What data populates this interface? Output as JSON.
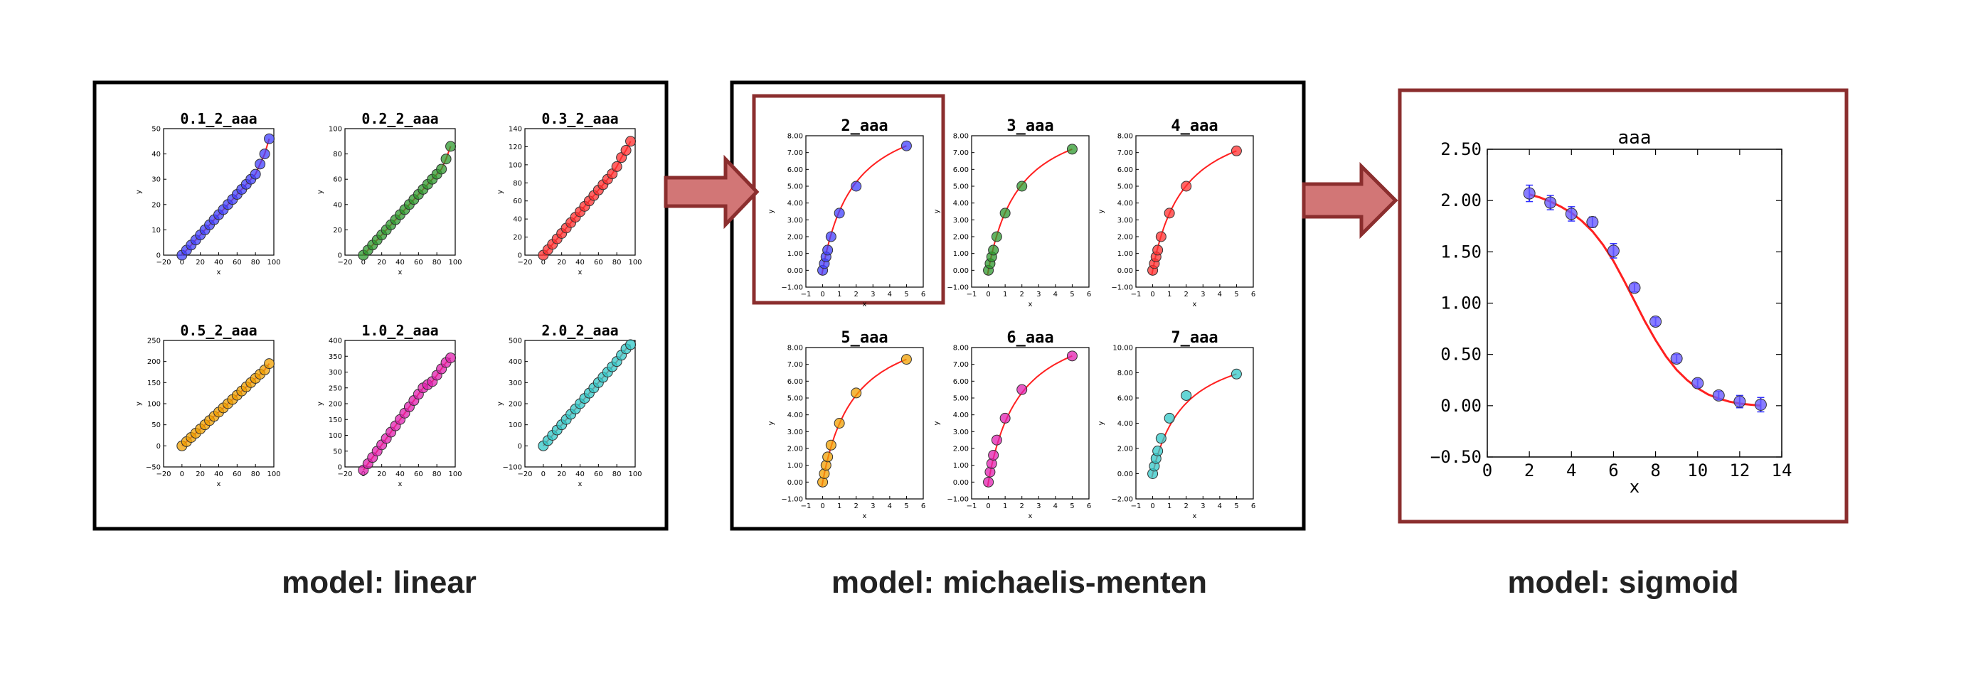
{
  "colors": {
    "panel_border": "#000000",
    "highlight_border": "#8b2e2e",
    "arrow_fill": "#d27676",
    "arrow_stroke": "#8b2e2e",
    "fit_line": "#ff2020",
    "palette": [
      "#4040ff",
      "#2e9a2e",
      "#ff3030",
      "#f0a000",
      "#e020b0",
      "#30c8c8"
    ]
  },
  "captions": {
    "linear": "model: linear",
    "michaelis": "model: michaelis-menten",
    "sigmoid": "model: sigmoid"
  },
  "linear": {
    "xlabel": "x",
    "ylabel": "y",
    "xticks": [
      "−20",
      "0",
      "20",
      "40",
      "60",
      "80",
      "100"
    ],
    "plots": [
      {
        "title": "0.1_2_aaa",
        "yticks": [
          "0",
          "10",
          "20",
          "30",
          "40",
          "50"
        ],
        "ylim": [
          -5,
          50
        ],
        "color": "#4040ff",
        "x": [
          0,
          5,
          10,
          15,
          20,
          25,
          30,
          35,
          40,
          45,
          50,
          55,
          60,
          65,
          70,
          75,
          80,
          85,
          90,
          95
        ],
        "y": [
          0,
          2,
          4,
          6,
          8,
          10,
          12,
          14,
          16,
          18,
          20,
          22,
          24,
          26,
          28,
          30,
          32,
          36,
          40,
          46
        ]
      },
      {
        "title": "0.2_2_aaa",
        "yticks": [
          "0",
          "20",
          "40",
          "60",
          "80",
          "100"
        ],
        "ylim": [
          -10,
          100
        ],
        "color": "#2e9a2e",
        "x": [
          0,
          5,
          10,
          15,
          20,
          25,
          30,
          35,
          40,
          45,
          50,
          55,
          60,
          65,
          70,
          75,
          80,
          85,
          90,
          95
        ],
        "y": [
          0,
          4,
          8,
          12,
          16,
          20,
          24,
          28,
          32,
          36,
          40,
          44,
          48,
          52,
          56,
          60,
          64,
          68,
          76,
          86
        ]
      },
      {
        "title": "0.3_2_aaa",
        "yticks": [
          "0",
          "20",
          "40",
          "60",
          "80",
          "100",
          "120",
          "140"
        ],
        "ylim": [
          -20,
          140
        ],
        "color": "#ff3030",
        "x": [
          0,
          5,
          10,
          15,
          20,
          25,
          30,
          35,
          40,
          45,
          50,
          55,
          60,
          65,
          70,
          75,
          80,
          85,
          90,
          95
        ],
        "y": [
          0,
          6,
          12,
          18,
          24,
          30,
          36,
          42,
          48,
          54,
          60,
          66,
          72,
          78,
          84,
          90,
          98,
          108,
          116,
          126
        ]
      },
      {
        "title": "0.5_2_aaa",
        "yticks": [
          "−50",
          "0",
          "50",
          "100",
          "150",
          "200",
          "250"
        ],
        "ylim": [
          -50,
          250
        ],
        "color": "#f0a000",
        "x": [
          0,
          5,
          10,
          15,
          20,
          25,
          30,
          35,
          40,
          45,
          50,
          55,
          60,
          65,
          70,
          75,
          80,
          85,
          90,
          95
        ],
        "y": [
          0,
          10,
          20,
          30,
          40,
          50,
          60,
          70,
          80,
          90,
          100,
          110,
          120,
          130,
          140,
          150,
          160,
          170,
          180,
          195
        ]
      },
      {
        "title": "1.0_2_aaa",
        "yticks": [
          "0",
          "50",
          "100",
          "150",
          "200",
          "250",
          "300",
          "350",
          "400"
        ],
        "ylim": [
          -50,
          400
        ],
        "color": "#e020b0",
        "x": [
          0,
          5,
          10,
          15,
          20,
          25,
          30,
          35,
          40,
          45,
          50,
          55,
          60,
          65,
          70,
          75,
          80,
          85,
          90,
          95
        ],
        "y": [
          -10,
          10,
          30,
          50,
          70,
          90,
          110,
          130,
          150,
          170,
          190,
          210,
          230,
          250,
          260,
          270,
          290,
          310,
          330,
          345
        ]
      },
      {
        "title": "2.0_2_aaa",
        "yticks": [
          "−100",
          "0",
          "100",
          "200",
          "300",
          "400",
          "500"
        ],
        "ylim": [
          -100,
          500
        ],
        "color": "#30c8c8",
        "x": [
          0,
          5,
          10,
          15,
          20,
          25,
          30,
          35,
          40,
          45,
          50,
          55,
          60,
          65,
          70,
          75,
          80,
          85,
          90,
          95
        ],
        "y": [
          0,
          25,
          50,
          75,
          100,
          125,
          150,
          175,
          200,
          225,
          250,
          275,
          300,
          325,
          350,
          375,
          400,
          430,
          460,
          480
        ]
      }
    ]
  },
  "michaelis": {
    "xlabel": "x",
    "ylabel": "y",
    "xticks": [
      "−1",
      "0",
      "1",
      "2",
      "3",
      "4",
      "5",
      "6"
    ],
    "plots": [
      {
        "title": "2_aaa",
        "yticks": [
          "−1.00",
          "0.00",
          "1.00",
          "2.00",
          "3.00",
          "4.00",
          "5.00",
          "6.00",
          "7.00",
          "8.00"
        ],
        "ylim": [
          -1,
          8
        ],
        "color": "#4040ff",
        "x": [
          0,
          0.1,
          0.2,
          0.3,
          0.5,
          1,
          2,
          5
        ],
        "y": [
          0,
          0.4,
          0.8,
          1.2,
          2.0,
          3.4,
          5.0,
          7.4
        ]
      },
      {
        "title": "3_aaa",
        "yticks": [
          "−1.00",
          "0.00",
          "1.00",
          "2.00",
          "3.00",
          "4.00",
          "5.00",
          "6.00",
          "7.00",
          "8.00"
        ],
        "ylim": [
          -1,
          8
        ],
        "color": "#2e9a2e",
        "x": [
          0,
          0.1,
          0.2,
          0.3,
          0.5,
          1,
          2,
          5
        ],
        "y": [
          0,
          0.4,
          0.8,
          1.2,
          2.0,
          3.4,
          5.0,
          7.2
        ]
      },
      {
        "title": "4_aaa",
        "yticks": [
          "−1.00",
          "0.00",
          "1.00",
          "2.00",
          "3.00",
          "4.00",
          "5.00",
          "6.00",
          "7.00",
          "8.00"
        ],
        "ylim": [
          -1,
          8
        ],
        "color": "#ff3030",
        "x": [
          0,
          0.1,
          0.2,
          0.3,
          0.5,
          1,
          2,
          5
        ],
        "y": [
          0,
          0.4,
          0.8,
          1.2,
          2.0,
          3.4,
          5.0,
          7.1
        ]
      },
      {
        "title": "5_aaa",
        "yticks": [
          "−1.00",
          "0.00",
          "1.00",
          "2.00",
          "3.00",
          "4.00",
          "5.00",
          "6.00",
          "7.00",
          "8.00"
        ],
        "ylim": [
          -1,
          8
        ],
        "color": "#f0a000",
        "x": [
          0,
          0.1,
          0.2,
          0.3,
          0.5,
          1,
          2,
          5
        ],
        "y": [
          0,
          0.5,
          1.0,
          1.5,
          2.2,
          3.5,
          5.3,
          7.3
        ]
      },
      {
        "title": "6_aaa",
        "yticks": [
          "−1.00",
          "0.00",
          "1.00",
          "2.00",
          "3.00",
          "4.00",
          "5.00",
          "6.00",
          "7.00",
          "8.00"
        ],
        "ylim": [
          -1,
          8
        ],
        "color": "#e020b0",
        "x": [
          0,
          0.1,
          0.2,
          0.3,
          0.5,
          1,
          2,
          5
        ],
        "y": [
          0,
          0.6,
          1.1,
          1.6,
          2.5,
          3.8,
          5.5,
          7.5
        ]
      },
      {
        "title": "7_aaa",
        "yticks": [
          "−2.00",
          "0.00",
          "2.00",
          "4.00",
          "6.00",
          "8.00",
          "10.00"
        ],
        "ylim": [
          -2,
          10
        ],
        "color": "#30c8c8",
        "x": [
          0,
          0.1,
          0.2,
          0.3,
          0.5,
          1,
          2,
          5
        ],
        "y": [
          0,
          0.6,
          1.2,
          1.8,
          2.8,
          4.4,
          6.2,
          7.9
        ]
      }
    ]
  },
  "chart_data": {
    "type": "scatter",
    "title": "aaa",
    "xlabel": "x",
    "ylabel": "",
    "xlim": [
      0,
      14
    ],
    "ylim": [
      -0.5,
      2.5
    ],
    "xticks": [
      "0",
      "2",
      "4",
      "6",
      "8",
      "10",
      "12",
      "14"
    ],
    "yticks": [
      "−0.50",
      "0.00",
      "0.50",
      "1.00",
      "1.50",
      "2.00",
      "2.50"
    ],
    "points": {
      "x": [
        2,
        3,
        4,
        5,
        6,
        7,
        8,
        9,
        10,
        11,
        12,
        13
      ],
      "y": [
        2.07,
        1.98,
        1.87,
        1.79,
        1.51,
        1.15,
        0.82,
        0.46,
        0.22,
        0.1,
        0.04,
        0.01
      ],
      "err": [
        0.08,
        0.07,
        0.07,
        0.05,
        0.07,
        0.04,
        0.04,
        0.04,
        0.04,
        0.04,
        0.06,
        0.07
      ],
      "color": "#6a5cff"
    },
    "fit": {
      "type": "sigmoid",
      "color": "#ff2020",
      "x": [
        2,
        2.5,
        3,
        3.5,
        4,
        4.5,
        5,
        5.5,
        6,
        6.5,
        7,
        7.5,
        8,
        8.5,
        9,
        9.5,
        10,
        10.5,
        11,
        11.5,
        12,
        12.5,
        13
      ],
      "y": [
        2.06,
        2.03,
        1.99,
        1.94,
        1.88,
        1.8,
        1.7,
        1.57,
        1.41,
        1.22,
        1.02,
        0.82,
        0.64,
        0.48,
        0.35,
        0.25,
        0.17,
        0.11,
        0.07,
        0.04,
        0.02,
        0.01,
        0.0
      ]
    }
  }
}
